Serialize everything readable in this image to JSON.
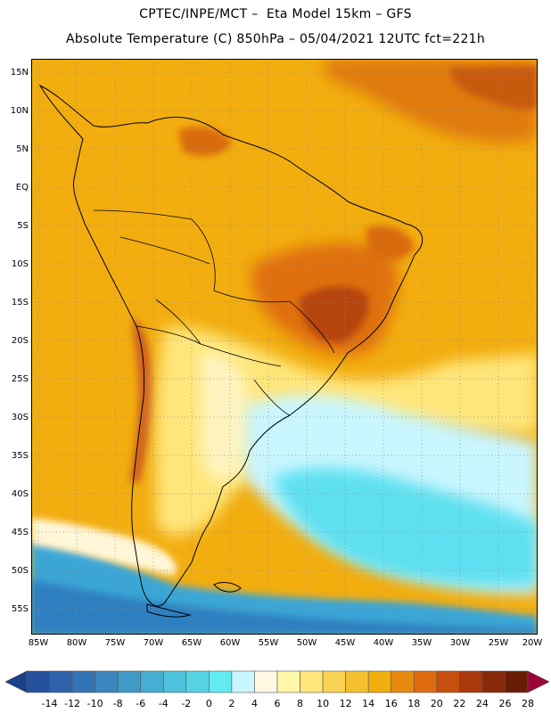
{
  "header": {
    "line1": "CPTEC/INPE/MCT –  Eta Model 15km – GFS",
    "line2": "Absolute Temperature (C) 850hPa – 05/04/2021 12UTC fct=221h"
  },
  "map": {
    "lat_ticks": [
      "15N",
      "10N",
      "5N",
      "EQ",
      "5S",
      "10S",
      "15S",
      "20S",
      "25S",
      "30S",
      "35S",
      "40S",
      "45S",
      "50S",
      "55S"
    ],
    "lon_ticks": [
      "85W",
      "80W",
      "75W",
      "70W",
      "65W",
      "60W",
      "55W",
      "50W",
      "45W",
      "40W",
      "35W",
      "30W",
      "25W",
      "20W"
    ],
    "palette": {
      "ocean_warm": "#f2ad0f",
      "hot": "#e06a10",
      "very_hot": "#b8400c",
      "mild": "#ffe67a",
      "cool": "#fff9c8",
      "cold": "#c9f6ff",
      "colder": "#5fe0f0",
      "coldest": "#3aa6d6",
      "deep_cold": "#2d7fbf"
    }
  },
  "colorbar": {
    "labels": [
      "-14",
      "-12",
      "-10",
      "-8",
      "-6",
      "-4",
      "-2",
      "0",
      "2",
      "4",
      "6",
      "8",
      "10",
      "12",
      "14",
      "16",
      "18",
      "20",
      "22",
      "24",
      "26",
      "28"
    ],
    "colors": [
      "#1b3f8f",
      "#24509c",
      "#2d62aa",
      "#3574b4",
      "#3b86be",
      "#3f9ac8",
      "#45aed2",
      "#4dc2dc",
      "#56d4e6",
      "#62ecf2",
      "#c9f7ff",
      "#fff8e2",
      "#fff6a8",
      "#ffe67a",
      "#fbd354",
      "#f5c030",
      "#f2ad0f",
      "#e8890f",
      "#e06a10",
      "#c74f0e",
      "#a9380b",
      "#882a09",
      "#6a1d05",
      "#9b0535"
    ]
  }
}
